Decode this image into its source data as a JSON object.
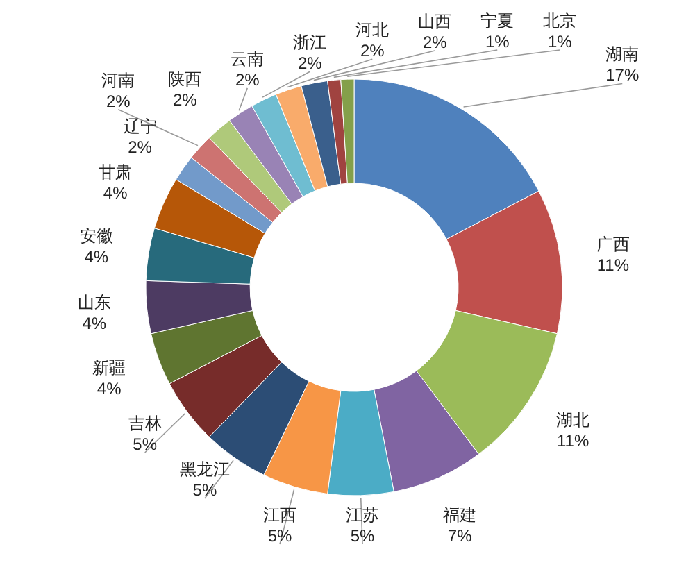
{
  "chart_data": {
    "type": "donut",
    "categories": [
      "湖南",
      "广西",
      "湖北",
      "福建",
      "江苏",
      "江西",
      "黑龙江",
      "吉林",
      "新疆",
      "山东",
      "安徽",
      "甘肃",
      "辽宁",
      "河南",
      "陕西",
      "云南",
      "浙江",
      "河北",
      "山西",
      "宁夏",
      "北京"
    ],
    "values": [
      17,
      11,
      11,
      7,
      5,
      5,
      5,
      5,
      4,
      4,
      4,
      4,
      2,
      2,
      2,
      2,
      2,
      2,
      2,
      1,
      1
    ],
    "value_labels": [
      "17%",
      "11%",
      "11%",
      "7%",
      "5%",
      "5%",
      "5%",
      "5%",
      "4%",
      "4%",
      "4%",
      "4%",
      "2%",
      "2%",
      "2%",
      "2%",
      "2%",
      "2%",
      "2%",
      "1%",
      "1%"
    ],
    "colors": [
      "#4f81bd",
      "#c0504d",
      "#9bbb59",
      "#8064a2",
      "#4bacc6",
      "#f79646",
      "#2c4d75",
      "#772c2a",
      "#5f7530",
      "#4d3b62",
      "#276a7c",
      "#b65708",
      "#729aca",
      "#cd7371",
      "#afc97a",
      "#9983b5",
      "#6fbdd1",
      "#f9ab6b",
      "#3a5f8c",
      "#a04340",
      "#84a04a"
    ]
  }
}
